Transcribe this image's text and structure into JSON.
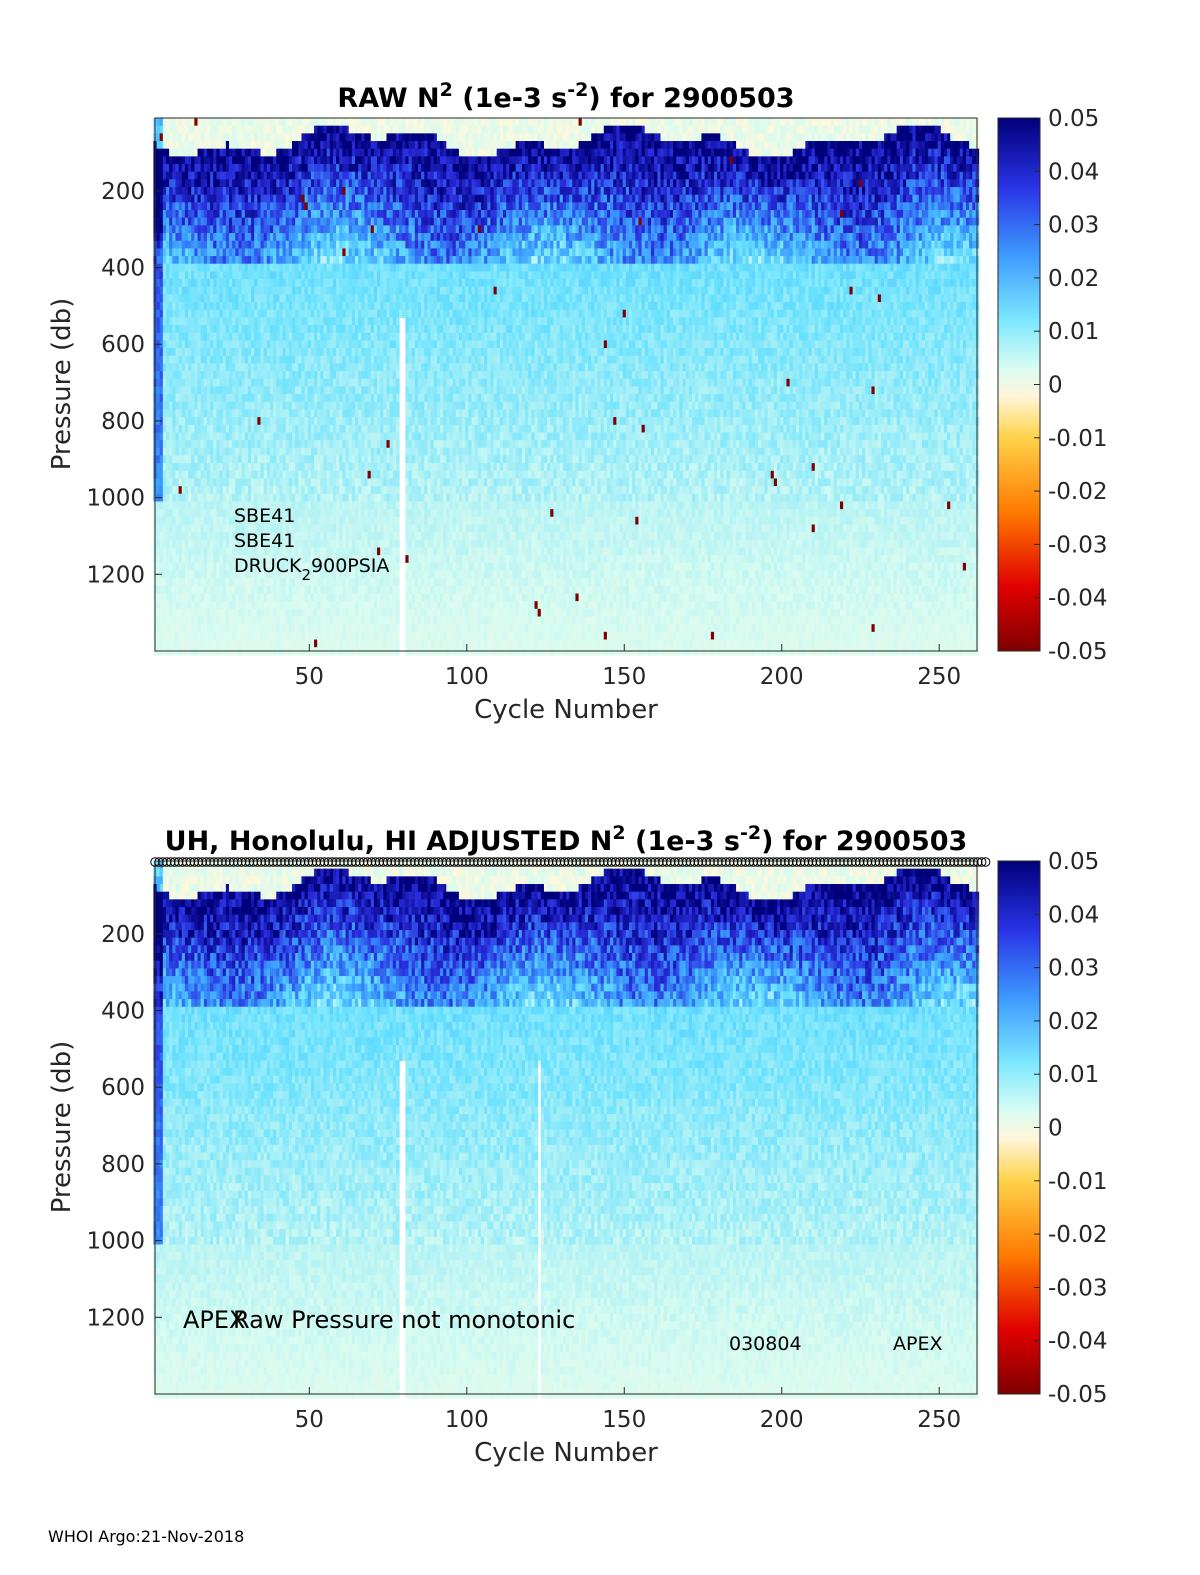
{
  "footer": "WHOI Argo:21-Nov-2018",
  "colormap": {
    "stops": [
      "#7f0000",
      "#ff0000",
      "#ff8c00",
      "#ffd34d",
      "#fff8dc",
      "#d8fbf0",
      "#66e0ff",
      "#3a9cff",
      "#2b2fe0",
      "#00007a"
    ],
    "ticks": [
      "0.05",
      "0.04",
      "0.03",
      "0.02",
      "0.01",
      "0",
      "-0.01",
      "-0.02",
      "-0.03",
      "-0.04",
      "-0.05"
    ]
  },
  "chart_data": [
    {
      "type": "heatmap",
      "title": {
        "prefix": "RAW N",
        "sup1": "2",
        "mid": " (1e-3 s",
        "sup2": "-2",
        "suffix": ") for 2900503"
      },
      "xlabel": "Cycle Number",
      "ylabel": "Pressure (db)",
      "xlim": [
        1,
        262
      ],
      "ylim": [
        1400,
        10
      ],
      "xticks": [
        "50",
        "100",
        "150",
        "200",
        "250"
      ],
      "yticks": [
        "200",
        "400",
        "600",
        "800",
        "1000",
        "1200"
      ],
      "clim": [
        -0.05,
        0.05
      ],
      "gap_cycles": [
        79,
        80
      ],
      "annotations": [
        "SBE41",
        "SBE41",
        "DRUCK",
        "2",
        "900PSIA"
      ]
    },
    {
      "type": "heatmap",
      "title": {
        "prefix": "UH, Honolulu, HI  ADJUSTED N",
        "sup1": "2",
        "mid": " (1e-3 s",
        "sup2": "-2",
        "suffix": ") for 2900503"
      },
      "xlabel": "Cycle Number",
      "ylabel": "Pressure (db)",
      "xlim": [
        1,
        262
      ],
      "ylim": [
        1400,
        10
      ],
      "xticks": [
        "50",
        "100",
        "150",
        "200",
        "250"
      ],
      "yticks": [
        "200",
        "400",
        "600",
        "800",
        "1000",
        "1200"
      ],
      "clim": [
        -0.05,
        0.05
      ],
      "gap_cycles": [
        79,
        80,
        123
      ],
      "annotations": [
        "APEX",
        "Raw Pressure not monotonic",
        "030804",
        "APEX"
      ]
    }
  ]
}
